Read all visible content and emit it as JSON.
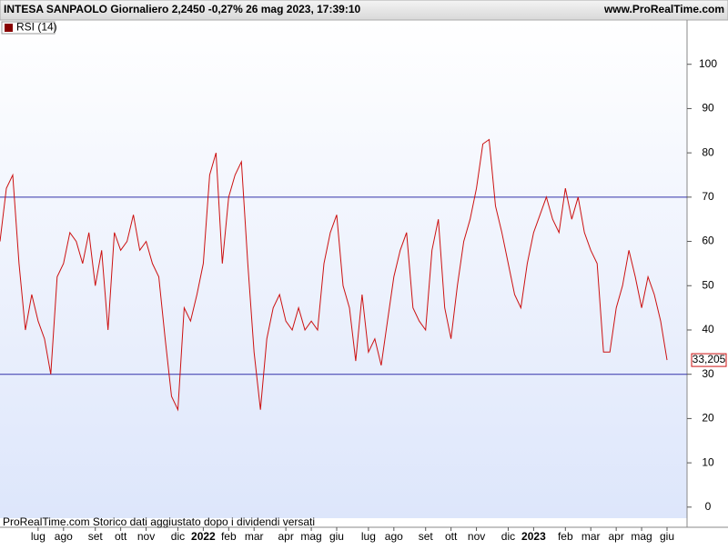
{
  "chart_data": {
    "type": "line",
    "title": "INTESA SANPAOLO Giornaliero 2,2450 -0,27% 26 mag 2023, 17:39:10",
    "source": "www.ProRealTime.com",
    "footnote": "ProRealTime.com  Storico dati aggiustato dopo i dividendi versati",
    "categories": [
      null,
      null,
      null,
      null,
      null,
      null,
      "lug",
      null,
      null,
      null,
      "ago",
      null,
      null,
      null,
      null,
      "set",
      null,
      null,
      null,
      "ott",
      null,
      null,
      null,
      "nov",
      null,
      null,
      null,
      null,
      "dic",
      null,
      null,
      null,
      "2022",
      null,
      null,
      null,
      "feb",
      null,
      null,
      null,
      "mar",
      null,
      null,
      null,
      null,
      "apr",
      null,
      null,
      null,
      "mag",
      null,
      null,
      null,
      "giu",
      null,
      null,
      null,
      null,
      "lug",
      null,
      null,
      null,
      "ago",
      null,
      null,
      null,
      null,
      "set",
      null,
      null,
      null,
      "ott",
      null,
      null,
      null,
      "nov",
      null,
      null,
      null,
      null,
      "dic",
      null,
      null,
      null,
      "2023",
      null,
      null,
      null,
      null,
      "feb",
      null,
      null,
      null,
      "mar",
      null,
      null,
      null,
      "apr",
      null,
      null,
      null,
      "mag",
      null,
      null,
      null,
      "giu"
    ],
    "series": [
      {
        "name": "RSI (14)",
        "color": "#cc1111",
        "values": [
          60,
          72,
          75,
          55,
          40,
          48,
          42,
          38,
          30,
          52,
          55,
          62,
          60,
          55,
          62,
          50,
          58,
          40,
          62,
          58,
          60,
          66,
          58,
          60,
          55,
          52,
          38,
          25,
          22,
          45,
          42,
          48,
          55,
          75,
          80,
          55,
          70,
          75,
          78,
          55,
          35,
          22,
          38,
          45,
          48,
          42,
          40,
          45,
          40,
          42,
          40,
          55,
          62,
          66,
          50,
          45,
          33,
          48,
          35,
          38,
          32,
          42,
          52,
          58,
          62,
          45,
          42,
          40,
          58,
          65,
          45,
          38,
          50,
          60,
          65,
          72,
          82,
          83,
          68,
          62,
          55,
          48,
          45,
          55,
          62,
          66,
          70,
          65,
          62,
          72,
          65,
          70,
          62,
          58,
          55,
          35,
          35,
          45,
          50,
          58,
          52,
          45,
          52,
          48,
          42,
          33.205
        ],
        "last_value_label": "33,205"
      }
    ],
    "levels": [
      70,
      30
    ],
    "level_color": "#3333aa",
    "ylim": [
      -2.5,
      110
    ],
    "yticks": [
      0,
      10,
      20,
      30,
      40,
      50,
      60,
      70,
      80,
      90,
      100
    ]
  }
}
